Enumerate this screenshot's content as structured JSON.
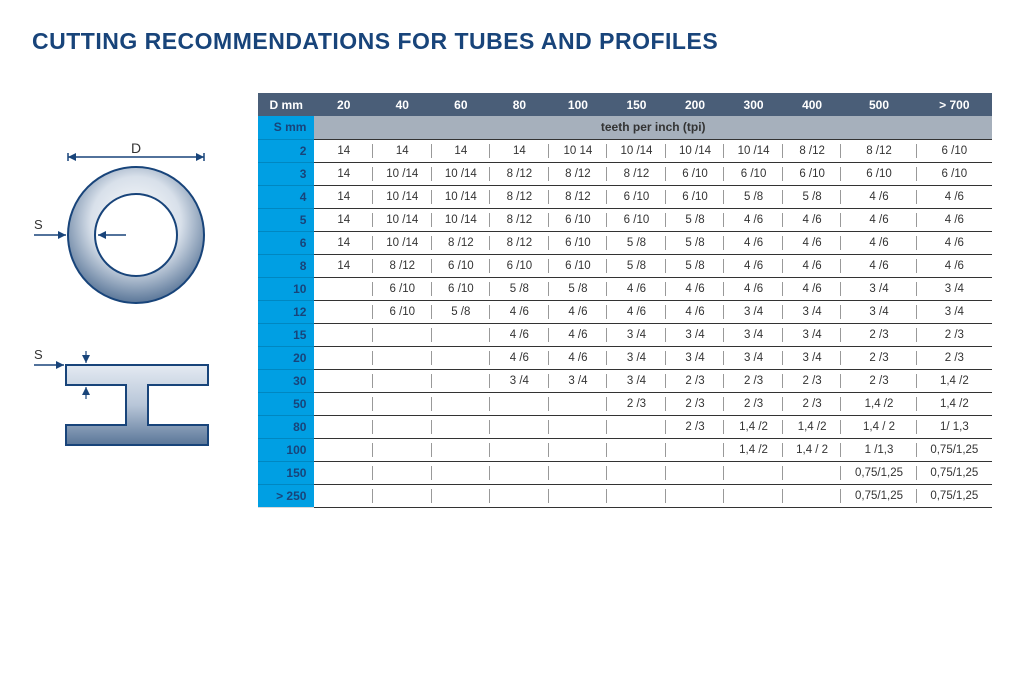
{
  "title": "CUTTING RECOMMENDATIONS FOR TUBES AND PROFILES",
  "diagram": {
    "labelD": "D",
    "labelS_ring": "S",
    "labelS_profile": "S"
  },
  "table": {
    "header_row_label": "D mm",
    "d_values": [
      "20",
      "40",
      "60",
      "80",
      "100",
      "150",
      "200",
      "300",
      "400",
      "500",
      "> 700"
    ],
    "sub_label": "S mm",
    "sub_span_text": "teeth per inch (tpi)",
    "s_values": [
      "2",
      "3",
      "4",
      "5",
      "6",
      "8",
      "10",
      "12",
      "15",
      "20",
      "30",
      "50",
      "80",
      "100",
      "150",
      "> 250"
    ],
    "rows": [
      [
        "14",
        "14",
        "14",
        "14",
        "10  14",
        "10 /14",
        "10 /14",
        "10 /14",
        "8 /12",
        "8 /12",
        "6 /10"
      ],
      [
        "14",
        "10 /14",
        "10 /14",
        "8 /12",
        "8 /12",
        "8 /12",
        "6 /10",
        "6 /10",
        "6 /10",
        "6 /10",
        "6 /10"
      ],
      [
        "14",
        "10 /14",
        "10 /14",
        "8 /12",
        "8 /12",
        "6 /10",
        "6 /10",
        "5 /8",
        "5 /8",
        "4 /6",
        "4 /6"
      ],
      [
        "14",
        "10 /14",
        "10 /14",
        "8 /12",
        "6 /10",
        "6 /10",
        "5 /8",
        "4 /6",
        "4 /6",
        "4 /6",
        "4 /6"
      ],
      [
        "14",
        "10 /14",
        "8 /12",
        "8 /12",
        "6 /10",
        "5 /8",
        "5 /8",
        "4 /6",
        "4 /6",
        "4 /6",
        "4 /6"
      ],
      [
        "14",
        "8 /12",
        "6 /10",
        "6 /10",
        "6 /10",
        "5 /8",
        "5 /8",
        "4 /6",
        "4 /6",
        "4 /6",
        "4 /6"
      ],
      [
        "",
        "6 /10",
        "6 /10",
        "5 /8",
        "5 /8",
        "4 /6",
        "4 /6",
        "4 /6",
        "4 /6",
        "3   /4",
        "3 /4"
      ],
      [
        "",
        "6 /10",
        "5 /8",
        "4 /6",
        "4 /6",
        "4 /6",
        "4 /6",
        "3   /4",
        "3 /4",
        "3 /4",
        "3 /4"
      ],
      [
        "",
        "",
        "",
        "4 /6",
        "4 /6",
        "3  /4",
        "3 /4",
        "3 /4",
        "3 /4",
        "2 /3",
        "2 /3"
      ],
      [
        "",
        "",
        "",
        "4 /6",
        "4 /6",
        "3  /4",
        "3 /4",
        "3 /4",
        "3 /4",
        "2 /3",
        "2 /3"
      ],
      [
        "",
        "",
        "",
        "3 /4",
        "3 /4",
        "3 /4",
        "2 /3",
        "2 /3",
        "2 /3",
        "2 /3",
        "1,4 /2"
      ],
      [
        "",
        "",
        "",
        "",
        "",
        "2 /3",
        "2 /3",
        "2 /3",
        "2 /3",
        "1,4 /2",
        "1,4 /2"
      ],
      [
        "",
        "",
        "",
        "",
        "",
        "",
        "2 /3",
        "1,4 /2",
        "1,4 /2",
        "1,4 /  2",
        "1/ 1,3"
      ],
      [
        "",
        "",
        "",
        "",
        "",
        "",
        "",
        "1,4 /2",
        "1,4 / 2",
        "1 /1,3",
        "0,75/1,25"
      ],
      [
        "",
        "",
        "",
        "",
        "",
        "",
        "",
        "",
        "",
        "0,75/1,25",
        "0,75/1,25"
      ],
      [
        "",
        "",
        "",
        "",
        "",
        "",
        "",
        "",
        "",
        "0,75/1,25",
        "0,75/1,25"
      ]
    ]
  },
  "colors": {
    "title": "#18447a",
    "header_bg": "#4a5e78",
    "s_col_bg": "#009fe3",
    "subheader_bg": "#a6b0bc",
    "ring_outer_stroke": "#18447a",
    "ring_fill_light": "#d8e0ea",
    "ring_fill_dark": "#6b86a8"
  }
}
